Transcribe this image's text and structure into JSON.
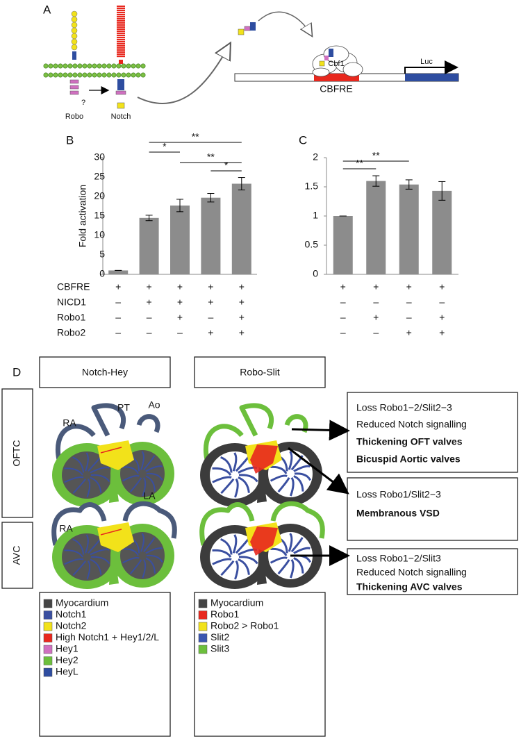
{
  "panel_labels": [
    "A",
    "B",
    "C",
    "D"
  ],
  "diagram_a": {
    "robo": "Robo",
    "question": "?",
    "notch": "Notch",
    "cbf1": "Cbf1",
    "cbfre": "CBFRE",
    "luc": "Luc"
  },
  "chart_data": [
    {
      "type": "bar",
      "y_label": "Fold activation",
      "values": [
        1,
        14.5,
        17.7,
        19.7,
        23.3
      ],
      "errors": [
        0,
        0.7,
        1.6,
        1.1,
        1.6
      ],
      "color": "#8c8c8c",
      "ylim": [
        0,
        30
      ],
      "yticks": [
        0,
        5,
        10,
        15,
        20,
        25,
        30
      ],
      "significance": [
        "**",
        "*",
        "**",
        "*"
      ],
      "conditions": [
        {
          "name": "CBFRE",
          "signs": [
            "+",
            "+",
            "+",
            "+",
            "+"
          ]
        },
        {
          "name": "NICD1",
          "signs": [
            "–",
            "+",
            "+",
            "+",
            "+"
          ]
        },
        {
          "name": "Robo1",
          "signs": [
            "–",
            "–",
            "+",
            "–",
            "+"
          ]
        },
        {
          "name": "Robo2",
          "signs": [
            "–",
            "–",
            "–",
            "+",
            "+"
          ]
        }
      ]
    },
    {
      "type": "bar",
      "values": [
        1,
        1.6,
        1.54,
        1.43
      ],
      "errors": [
        0,
        0.09,
        0.08,
        0.16
      ],
      "color": "#8c8c8c",
      "ylim": [
        0,
        2
      ],
      "yticks": [
        0,
        0.5,
        1,
        1.5,
        2
      ],
      "significance": [
        "**",
        "**"
      ],
      "conditions": [
        {
          "signs": [
            "+",
            "+",
            "+",
            "+"
          ]
        },
        {
          "signs": [
            "–",
            "–",
            "–",
            "–"
          ]
        },
        {
          "signs": [
            "–",
            "+",
            "–",
            "+"
          ]
        },
        {
          "signs": [
            "–",
            "–",
            "+",
            "+"
          ]
        }
      ]
    }
  ],
  "panel_d": {
    "columns": [
      "Notch-Hey",
      "Robo-Slit"
    ],
    "rows": [
      "OFTC",
      "AVC"
    ],
    "heart_labels": [
      "PT",
      "Ao",
      "RA",
      "RA",
      "LA"
    ],
    "findings": [
      {
        "lines": [
          "Loss Robo1−2/Slit2−3",
          "Reduced Notch signalling"
        ],
        "bold": [
          "Thickening OFT valves",
          "Bicuspid Aortic valves"
        ]
      },
      {
        "lines": [
          "Loss Robo1/Slit2−3"
        ],
        "bold": [
          "Membranous VSD"
        ]
      },
      {
        "lines": [
          "Loss Robo1−2/Slit3",
          "Reduced Notch signalling"
        ],
        "bold": [
          "Thickening AVC valves"
        ]
      }
    ],
    "legends": [
      [
        {
          "label": "Myocardium",
          "color": "#444444"
        },
        {
          "label": "Notch1",
          "color": "#3a4fa0"
        },
        {
          "label": "Notch2",
          "color": "#f2e21a"
        },
        {
          "label": "High Notch1 + Hey1/2/L",
          "color": "#e8281e"
        },
        {
          "label": "Hey1",
          "color": "#d070c0"
        },
        {
          "label": "Hey2",
          "color": "#6cbf3c"
        },
        {
          "label": "HeyL",
          "color": "#2e4da0"
        }
      ],
      [
        {
          "label": "Myocardium",
          "color": "#444444"
        },
        {
          "label": "Robo1",
          "color": "#e8281e"
        },
        {
          "label": "Robo2 > Robo1",
          "color": "#f2e21a"
        },
        {
          "label": "Slit2",
          "color": "#3a55b0"
        },
        {
          "label": "Slit3",
          "color": "#6cbf3c"
        }
      ]
    ]
  }
}
